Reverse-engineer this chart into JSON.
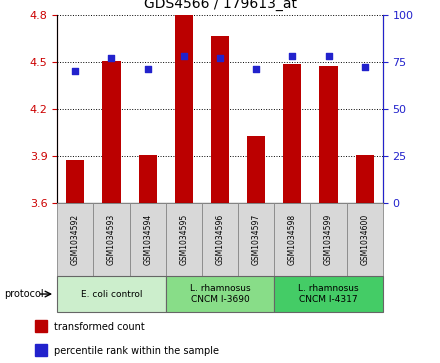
{
  "title": "GDS4566 / 179613_at",
  "samples": [
    "GSM1034592",
    "GSM1034593",
    "GSM1034594",
    "GSM1034595",
    "GSM1034596",
    "GSM1034597",
    "GSM1034598",
    "GSM1034599",
    "GSM1034600"
  ],
  "transformed_counts": [
    3.875,
    4.505,
    3.905,
    4.795,
    4.665,
    4.03,
    4.485,
    4.475,
    3.91
  ],
  "percentile_ranks": [
    70,
    77,
    71,
    78,
    77,
    71,
    78,
    78,
    72
  ],
  "ylim": [
    3.6,
    4.8
  ],
  "ylim_right": [
    0,
    100
  ],
  "yticks_left": [
    3.6,
    3.9,
    4.2,
    4.5,
    4.8
  ],
  "yticks_right": [
    0,
    25,
    50,
    75,
    100
  ],
  "bar_color": "#bb0000",
  "dot_color": "#2222cc",
  "group_colors": [
    "#cceecc",
    "#88dd88",
    "#44cc66"
  ],
  "groups": [
    {
      "label": "E. coli control",
      "start": 0,
      "end": 3
    },
    {
      "label": "L. rhamnosus\nCNCM I-3690",
      "start": 3,
      "end": 6
    },
    {
      "label": "L. rhamnosus\nCNCM I-4317",
      "start": 6,
      "end": 9
    }
  ],
  "protocol_label": "protocol",
  "legend_items": [
    {
      "color": "#bb0000",
      "label": "transformed count"
    },
    {
      "color": "#2222cc",
      "label": "percentile rank within the sample"
    }
  ],
  "background_color": "#ffffff",
  "title_fontsize": 10,
  "axis_label_color_left": "#cc0000",
  "axis_label_color_right": "#2222cc",
  "sample_box_color": "#d8d8d8"
}
